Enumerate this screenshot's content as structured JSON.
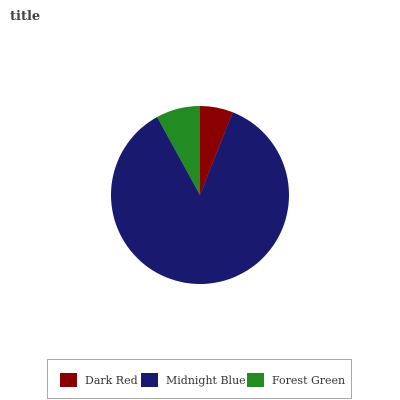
{
  "chart_data": {
    "type": "pie",
    "title": "title",
    "categories": [
      "Dark Red",
      "Midnight Blue",
      "Forest Green"
    ],
    "values": [
      6.0,
      86.0,
      8.0
    ],
    "colors": [
      "#8b0000",
      "#191970",
      "#228b22"
    ],
    "start_angle_deg": 90,
    "direction": "clockwise",
    "legend_position": "bottom"
  }
}
